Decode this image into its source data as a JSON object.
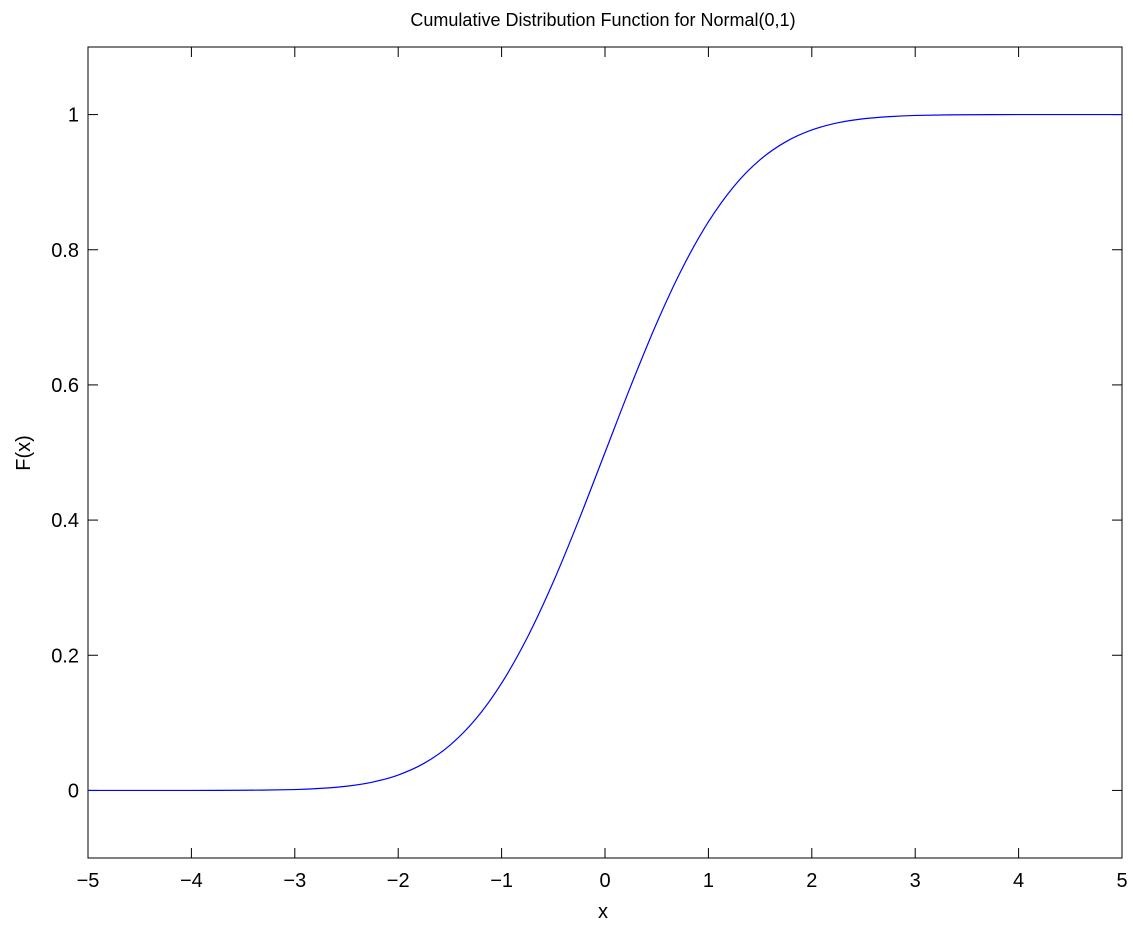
{
  "chart_data": {
    "type": "line",
    "title": "Cumulative Distribution Function for Normal(0,1)",
    "xlabel": "x",
    "ylabel": "F(x)",
    "xlim": [
      -5,
      5
    ],
    "ylim": [
      -0.1,
      1.1
    ],
    "x_ticks": [
      -5,
      -4,
      -3,
      -2,
      -1,
      0,
      1,
      2,
      3,
      4,
      5
    ],
    "x_tick_labels": [
      "−5",
      "−4",
      "−3",
      "−2",
      "−1",
      "0",
      "1",
      "2",
      "3",
      "4",
      "5"
    ],
    "y_ticks": [
      0,
      0.2,
      0.4,
      0.6,
      0.8,
      1
    ],
    "y_tick_labels": [
      "0",
      "0.2",
      "0.4",
      "0.6",
      "0.8",
      "1"
    ],
    "grid": false,
    "series": [
      {
        "color": "#0000ff",
        "x": [
          -5,
          -4.5,
          -4,
          -3.5,
          -3,
          -2.75,
          -2.5,
          -2.25,
          -2,
          -1.75,
          -1.5,
          -1.25,
          -1,
          -0.75,
          -0.5,
          -0.25,
          0,
          0.25,
          0.5,
          0.75,
          1,
          1.25,
          1.5,
          1.75,
          2,
          2.25,
          2.5,
          2.75,
          3,
          3.5,
          4,
          4.5,
          5
        ],
        "y": [
          0,
          0,
          0,
          0.0002,
          0.0013,
          0.003,
          0.0062,
          0.0122,
          0.0228,
          0.0401,
          0.0668,
          0.1056,
          0.1587,
          0.2266,
          0.3085,
          0.4013,
          0.5,
          0.5987,
          0.6915,
          0.7734,
          0.8413,
          0.8944,
          0.9332,
          0.9599,
          0.9772,
          0.9878,
          0.9938,
          0.997,
          0.9987,
          0.9998,
          1,
          1,
          1
        ]
      }
    ]
  }
}
